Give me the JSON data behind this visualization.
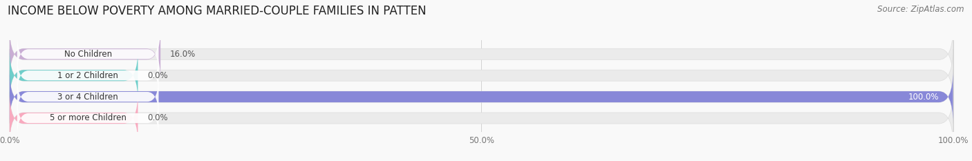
{
  "title": "INCOME BELOW POVERTY AMONG MARRIED-COUPLE FAMILIES IN PATTEN",
  "source": "Source: ZipAtlas.com",
  "categories": [
    "No Children",
    "1 or 2 Children",
    "3 or 4 Children",
    "5 or more Children"
  ],
  "values": [
    16.0,
    0.0,
    100.0,
    0.0
  ],
  "bar_colors": [
    "#c9aed4",
    "#6ececa",
    "#8888d8",
    "#f8aabf"
  ],
  "label_bg_colors": [
    "#f5f0f8",
    "#e8f8f8",
    "#e8e8f8",
    "#fde8ee"
  ],
  "bar_bg_color": "#ebebeb",
  "xlim": [
    0,
    100
  ],
  "xticks": [
    0,
    50,
    100
  ],
  "xtick_labels": [
    "0.0%",
    "50.0%",
    "100.0%"
  ],
  "background_color": "#f9f9f9",
  "title_fontsize": 12,
  "label_fontsize": 8.5,
  "value_fontsize": 8.5,
  "source_fontsize": 8.5
}
